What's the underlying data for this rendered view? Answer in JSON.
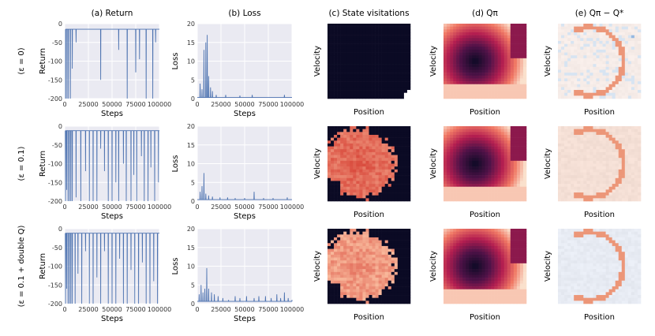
{
  "column_titles": [
    "(a) Return",
    "(b) Loss",
    "(c) State visitations",
    "(d) Qπ",
    "(e) Qπ − Q*"
  ],
  "row_labels": [
    "(ε = 0)",
    "(ε = 0.1)",
    "(ε = 0.1 + double Q)"
  ],
  "heatmap_xlabel": "Position",
  "heatmap_ylabel": "Velocity",
  "chart_data": [
    {
      "type": "line",
      "panel": "return",
      "row": 0,
      "xlabel": "Steps",
      "ylabel": "Return",
      "xlim": [
        0,
        100000
      ],
      "ylim": [
        -200,
        0
      ],
      "xticks": [
        0,
        25000,
        50000,
        75000,
        100000
      ],
      "yticks": [
        0,
        -50,
        -100,
        -150,
        -200
      ],
      "grid": true,
      "baseline": -15,
      "dips": [
        [
          1000,
          -200
        ],
        [
          2500,
          -200
        ],
        [
          4000,
          -200
        ],
        [
          6000,
          -200
        ],
        [
          8000,
          -120
        ],
        [
          12000,
          -50
        ],
        [
          38000,
          -150
        ],
        [
          57000,
          -70
        ],
        [
          66000,
          -200
        ],
        [
          75000,
          -130
        ],
        [
          79000,
          -95
        ],
        [
          86000,
          -200
        ],
        [
          93000,
          -200
        ],
        [
          96000,
          -50
        ]
      ]
    },
    {
      "type": "line",
      "panel": "loss",
      "row": 0,
      "xlabel": "Steps",
      "ylabel": "Loss",
      "xlim": [
        0,
        100000
      ],
      "ylim": [
        0,
        20
      ],
      "xticks": [
        0,
        25000,
        50000,
        75000,
        100000
      ],
      "yticks": [
        0,
        5,
        10,
        15,
        20
      ],
      "grid": true,
      "baseline": 0.3,
      "spikes": [
        [
          3000,
          4
        ],
        [
          5000,
          2.5
        ],
        [
          7000,
          13
        ],
        [
          9000,
          15
        ],
        [
          10500,
          17
        ],
        [
          12000,
          6
        ],
        [
          14000,
          3
        ],
        [
          16000,
          2
        ],
        [
          20000,
          1
        ],
        [
          30000,
          1
        ],
        [
          45000,
          0.8
        ],
        [
          58000,
          1
        ],
        [
          92000,
          1
        ]
      ]
    },
    {
      "type": "line",
      "panel": "return",
      "row": 1,
      "xlabel": "Steps",
      "ylabel": "Return",
      "xlim": [
        0,
        100000
      ],
      "ylim": [
        -200,
        0
      ],
      "xticks": [
        0,
        25000,
        50000,
        75000,
        100000
      ],
      "yticks": [
        0,
        -50,
        -100,
        -150,
        -200
      ],
      "grid": true,
      "baseline": -12,
      "dips": [
        [
          800,
          -200
        ],
        [
          2000,
          -170
        ],
        [
          3500,
          -200
        ],
        [
          5000,
          -200
        ],
        [
          6500,
          -200
        ],
        [
          8000,
          -200
        ],
        [
          12000,
          -190
        ],
        [
          17000,
          -200
        ],
        [
          22000,
          -120
        ],
        [
          26000,
          -200
        ],
        [
          30000,
          -200
        ],
        [
          34000,
          -200
        ],
        [
          38000,
          -60
        ],
        [
          42000,
          -120
        ],
        [
          46000,
          -200
        ],
        [
          50000,
          -200
        ],
        [
          54000,
          -150
        ],
        [
          57000,
          -200
        ],
        [
          62000,
          -100
        ],
        [
          65000,
          -200
        ],
        [
          70000,
          -200
        ],
        [
          73000,
          -130
        ],
        [
          76000,
          -200
        ],
        [
          81000,
          -80
        ],
        [
          84000,
          -200
        ],
        [
          88000,
          -200
        ],
        [
          91000,
          -110
        ],
        [
          95000,
          -200
        ],
        [
          99000,
          -150
        ]
      ]
    },
    {
      "type": "line",
      "panel": "loss",
      "row": 1,
      "xlabel": "Steps",
      "ylabel": "Loss",
      "xlim": [
        0,
        100000
      ],
      "ylim": [
        0,
        20
      ],
      "xticks": [
        0,
        25000,
        50000,
        75000,
        100000
      ],
      "yticks": [
        0,
        5,
        10,
        15,
        20
      ],
      "grid": true,
      "baseline": 0.4,
      "spikes": [
        [
          3000,
          2.5
        ],
        [
          5000,
          4
        ],
        [
          7000,
          7.5
        ],
        [
          9000,
          2
        ],
        [
          12000,
          1.5
        ],
        [
          16000,
          1.2
        ],
        [
          24000,
          1
        ],
        [
          32000,
          1
        ],
        [
          40000,
          0.8
        ],
        [
          50000,
          0.8
        ],
        [
          60000,
          2.5
        ],
        [
          70000,
          0.8
        ],
        [
          80000,
          0.8
        ],
        [
          95000,
          1
        ]
      ]
    },
    {
      "type": "line",
      "panel": "return",
      "row": 2,
      "xlabel": "Steps",
      "ylabel": "Return",
      "xlim": [
        0,
        100000
      ],
      "ylim": [
        -200,
        0
      ],
      "xticks": [
        0,
        25000,
        50000,
        75000,
        100000
      ],
      "yticks": [
        0,
        -50,
        -100,
        -150,
        -200
      ],
      "grid": true,
      "baseline": -12,
      "dips": [
        [
          800,
          -200
        ],
        [
          2000,
          -160
        ],
        [
          3500,
          -200
        ],
        [
          5000,
          -200
        ],
        [
          6500,
          -200
        ],
        [
          8000,
          -200
        ],
        [
          11000,
          -200
        ],
        [
          14000,
          -120
        ],
        [
          18000,
          -200
        ],
        [
          22000,
          -60
        ],
        [
          26000,
          -200
        ],
        [
          30000,
          -200
        ],
        [
          34000,
          -130
        ],
        [
          38000,
          -200
        ],
        [
          42000,
          -60
        ],
        [
          46000,
          -200
        ],
        [
          50000,
          -200
        ],
        [
          54000,
          -200
        ],
        [
          58000,
          -80
        ],
        [
          62000,
          -200
        ],
        [
          66000,
          -200
        ],
        [
          70000,
          -110
        ],
        [
          74000,
          -200
        ],
        [
          78000,
          -200
        ],
        [
          82000,
          -90
        ],
        [
          86000,
          -200
        ],
        [
          90000,
          -200
        ],
        [
          94000,
          -140
        ],
        [
          98000,
          -200
        ]
      ]
    },
    {
      "type": "line",
      "panel": "loss",
      "row": 2,
      "xlabel": "Steps",
      "ylabel": "Loss",
      "xlim": [
        0,
        100000
      ],
      "ylim": [
        0,
        20
      ],
      "xticks": [
        0,
        25000,
        50000,
        75000,
        100000
      ],
      "yticks": [
        0,
        5,
        10,
        15,
        20
      ],
      "grid": true,
      "baseline": 0.6,
      "spikes": [
        [
          2000,
          2.5
        ],
        [
          4000,
          5
        ],
        [
          6000,
          3
        ],
        [
          8000,
          4
        ],
        [
          10000,
          9.5
        ],
        [
          12000,
          4
        ],
        [
          15000,
          3
        ],
        [
          18000,
          2.5
        ],
        [
          22000,
          2
        ],
        [
          27000,
          1.5
        ],
        [
          33000,
          1
        ],
        [
          40000,
          2
        ],
        [
          45000,
          1.5
        ],
        [
          52000,
          2
        ],
        [
          60000,
          1.5
        ],
        [
          65000,
          2
        ],
        [
          72000,
          2
        ],
        [
          78000,
          1.5
        ],
        [
          84000,
          2.5
        ],
        [
          88000,
          1.5
        ],
        [
          92000,
          3
        ],
        [
          96000,
          1.5
        ],
        [
          100000,
          1
        ]
      ]
    },
    {
      "type": "heatmap",
      "panel": "visits",
      "row": 0,
      "xlabel": "Position",
      "ylabel": "Velocity",
      "pattern": "dark"
    },
    {
      "type": "heatmap",
      "panel": "visits",
      "row": 1,
      "xlabel": "Position",
      "ylabel": "Velocity",
      "pattern": "visits"
    },
    {
      "type": "heatmap",
      "panel": "visits",
      "row": 2,
      "xlabel": "Position",
      "ylabel": "Velocity",
      "pattern": "visits_light"
    },
    {
      "type": "heatmap",
      "panel": "q",
      "row": 0,
      "xlabel": "Position",
      "ylabel": "Velocity",
      "pattern": "q"
    },
    {
      "type": "heatmap",
      "panel": "q",
      "row": 1,
      "xlabel": "Position",
      "ylabel": "Velocity",
      "pattern": "q"
    },
    {
      "type": "heatmap",
      "panel": "q",
      "row": 2,
      "xlabel": "Position",
      "ylabel": "Velocity",
      "pattern": "q"
    },
    {
      "type": "heatmap",
      "panel": "diff",
      "row": 0,
      "xlabel": "Position",
      "ylabel": "Velocity",
      "pattern": "diff"
    },
    {
      "type": "heatmap",
      "panel": "diff",
      "row": 1,
      "xlabel": "Position",
      "ylabel": "Velocity",
      "pattern": "diff_red"
    },
    {
      "type": "heatmap",
      "panel": "diff",
      "row": 2,
      "xlabel": "Position",
      "ylabel": "Velocity",
      "pattern": "diff_blue"
    }
  ],
  "colors": {
    "line": "#4c72b0",
    "plot_bg": "#eaeaf2",
    "grid": "#ffffff",
    "dark": "#0b0a24"
  }
}
